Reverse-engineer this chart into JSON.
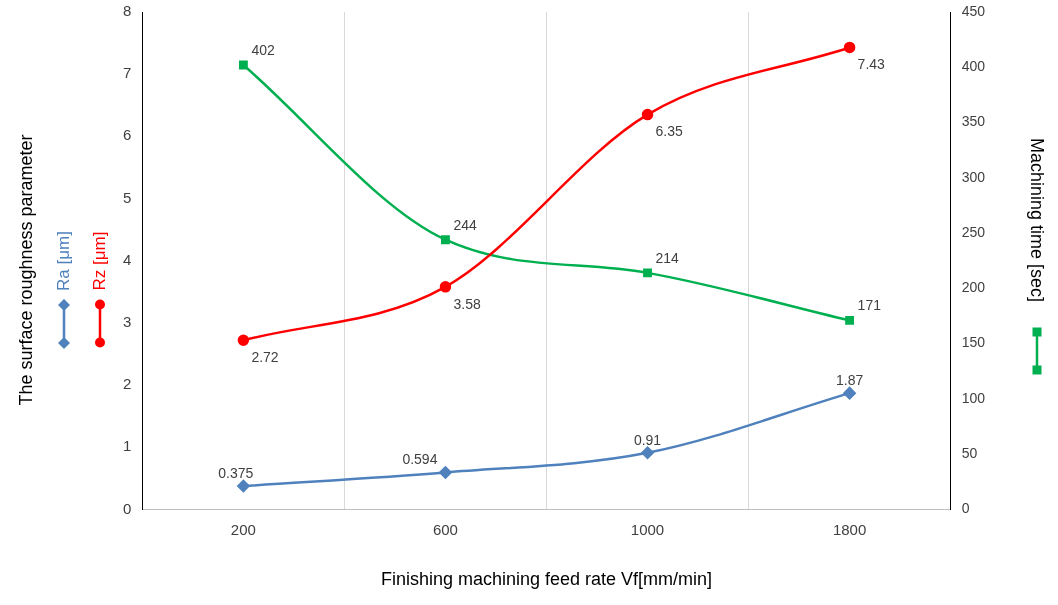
{
  "chart_data": {
    "type": "line",
    "xlabel": "Finishing machining feed rate Vf[mm/min]",
    "ylabel": "The surface roughness parameter",
    "y2label": "Machining time [sec]",
    "categories": [
      "200",
      "600",
      "1000",
      "1800"
    ],
    "series": [
      {
        "name": "Ra [μm]",
        "color": "#4f81bd",
        "marker": "diamond",
        "values": [
          0.375,
          0.594,
          0.91,
          1.87
        ]
      },
      {
        "name": "Rz [μm]",
        "color": "#ff0000",
        "marker": "circle",
        "values": [
          2.72,
          3.58,
          6.35,
          7.43
        ]
      },
      {
        "color": "#00b050",
        "marker": "square",
        "axis": "y2",
        "values": [
          402,
          244,
          214,
          171
        ]
      }
    ],
    "ylim": [
      0,
      8
    ],
    "yticks": [
      0,
      1,
      2,
      3,
      4,
      5,
      6,
      7,
      8
    ],
    "y2lim": [
      0,
      450
    ],
    "y2ticks": [
      0,
      50,
      100,
      150,
      200,
      250,
      300,
      350,
      400,
      450
    ],
    "grid": "x",
    "legend": "left",
    "data_labels": true
  }
}
